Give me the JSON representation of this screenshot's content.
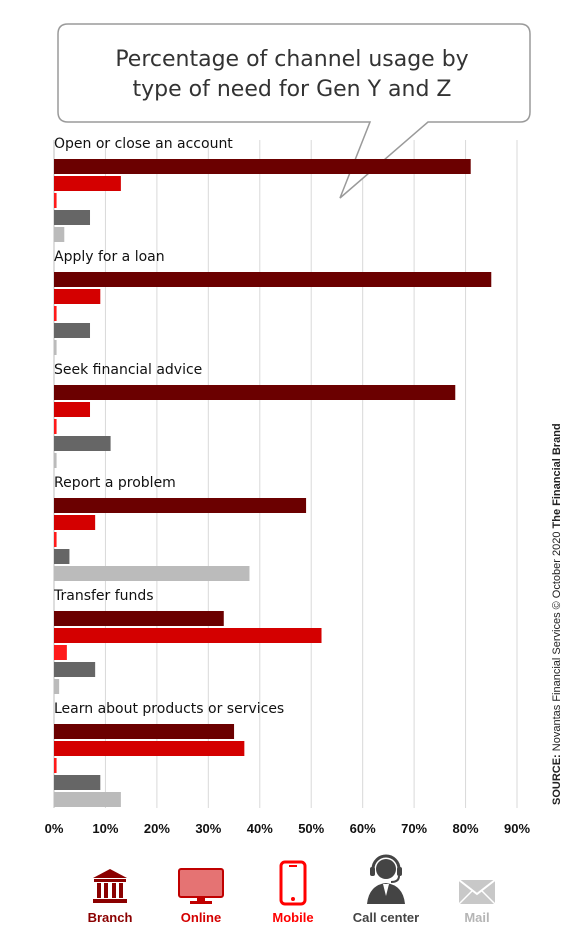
{
  "chart_data": {
    "type": "bar",
    "orientation": "horizontal",
    "title": "Percentage of channel usage by type of need for Gen Y and Z",
    "title_lines": [
      "Percentage of channel usage by",
      "type of need for Gen Y and Z"
    ],
    "categories": [
      "Open or close an account",
      "Apply for a loan",
      "Seek financial advice",
      "Report a problem",
      "Transfer funds",
      "Learn about products or services"
    ],
    "series": [
      {
        "name": "Branch",
        "color": "#6b0000",
        "values": [
          81,
          85,
          78,
          49,
          33,
          35
        ]
      },
      {
        "name": "Online",
        "color": "#d40000",
        "values": [
          13,
          9,
          7,
          8,
          52,
          37
        ]
      },
      {
        "name": "Mobile",
        "color": "#ff1a1a",
        "values": [
          0.5,
          0.5,
          0.5,
          0.5,
          2.5,
          0.5
        ]
      },
      {
        "name": "Call center",
        "color": "#666666",
        "values": [
          7,
          7,
          11,
          3,
          8,
          9
        ]
      },
      {
        "name": "Mail",
        "color": "#bbbbbb",
        "values": [
          2,
          0.5,
          0.5,
          38,
          1,
          13
        ]
      }
    ],
    "xlim": [
      0,
      90
    ],
    "ticks": [
      "0%",
      "10%",
      "20%",
      "30%",
      "40%",
      "50%",
      "60%",
      "70%",
      "80%",
      "90%"
    ],
    "grid": true,
    "legend_position": "bottom"
  },
  "legend": [
    {
      "label": "Branch",
      "color": "#8b0000",
      "icon": "bank-icon"
    },
    {
      "label": "Online",
      "color": "#d40000",
      "icon": "monitor-icon"
    },
    {
      "label": "Mobile",
      "color": "#ff0000",
      "icon": "smartphone-icon"
    },
    {
      "label": "Call center",
      "color": "#444444",
      "icon": "headset-agent-icon"
    },
    {
      "label": "Mail",
      "color": "#b5b5b5",
      "icon": "envelope-icon"
    }
  ],
  "source": {
    "prefix": "SOURCE:",
    "text": "Novantas Financial Services © October 2020",
    "brand": "The Financial Brand"
  }
}
